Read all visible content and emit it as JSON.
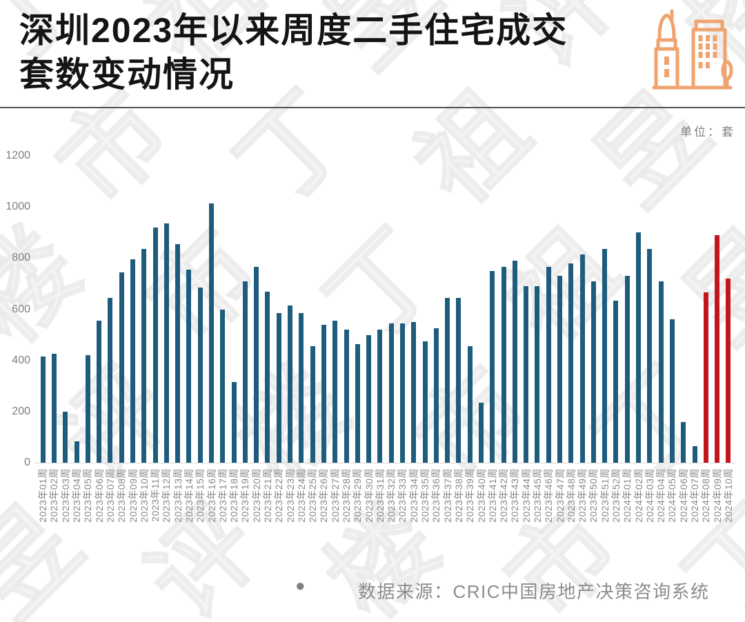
{
  "title": {
    "line1": "深圳2023年以来周度二手住宅成交",
    "line2": "套数变动情况"
  },
  "unit_label": "单位：套",
  "watermark_text": "丁祖昱评楼市",
  "footer": {
    "bullet": "●",
    "source": "数据来源：CRIC中国房地产决策咨询系统"
  },
  "icon": {
    "name": "buildings-icon",
    "color": "#F0A36E"
  },
  "colors": {
    "bar_blue": "#1D5C7C",
    "bar_red": "#C3161C",
    "title_text": "#141414",
    "axis_text": "#7c7c7c",
    "x_label_text": "#878787",
    "footer_text": "#8c8c8c",
    "divider": "#515151",
    "axis_line": "#d8d8d8",
    "icon_orange": "#F0A36E",
    "watermark": "#e9e9e9"
  },
  "chart_data": {
    "type": "bar",
    "title": "深圳2023年以来周度二手住宅成交套数变动情况",
    "unit": "套",
    "xlabel": "",
    "ylabel": "",
    "ylim": [
      0,
      1200
    ],
    "yticks": [
      0,
      200,
      400,
      600,
      800,
      1000,
      1200
    ],
    "grid": false,
    "legend": false,
    "bar_color": "#1D5C7C",
    "highlight_color": "#C3161C",
    "highlight_categories": [
      "2024年08周",
      "2024年09周",
      "2024年10周"
    ],
    "categories": [
      "2023年01周",
      "2023年02周",
      "2023年03周",
      "2023年04周",
      "2023年05周",
      "2023年06周",
      "2023年07周",
      "2023年08周",
      "2023年09周",
      "2023年10周",
      "2023年11周",
      "2023年12周",
      "2023年13周",
      "2023年14周",
      "2023年15周",
      "2023年16周",
      "2023年17周",
      "2023年18周",
      "2023年19周",
      "2023年20周",
      "2023年21周",
      "2023年22周",
      "2023年23周",
      "2023年24周",
      "2023年25周",
      "2023年26周",
      "2023年27周",
      "2023年28周",
      "2023年29周",
      "2023年30周",
      "2023年31周",
      "2023年32周",
      "2023年33周",
      "2023年34周",
      "2023年35周",
      "2023年36周",
      "2023年37周",
      "2023年38周",
      "2023年39周",
      "2023年40周",
      "2023年41周",
      "2023年42周",
      "2023年43周",
      "2023年44周",
      "2023年45周",
      "2023年46周",
      "2023年47周",
      "2023年48周",
      "2023年49周",
      "2023年50周",
      "2023年51周",
      "2023年52周",
      "2024年01周",
      "2024年02周",
      "2024年03周",
      "2024年04周",
      "2024年05周",
      "2024年06周",
      "2024年07周",
      "2024年08周",
      "2024年09周",
      "2024年10周"
    ],
    "values": [
      415,
      425,
      200,
      85,
      420,
      555,
      645,
      745,
      795,
      835,
      920,
      935,
      855,
      755,
      685,
      1015,
      600,
      315,
      710,
      765,
      670,
      585,
      615,
      585,
      455,
      540,
      555,
      520,
      465,
      500,
      520,
      545,
      545,
      550,
      475,
      525,
      645,
      645,
      455,
      235,
      750,
      765,
      790,
      690,
      690,
      765,
      730,
      780,
      815,
      710,
      835,
      635,
      730,
      900,
      835,
      710,
      560,
      160,
      65,
      665,
      890,
      720
    ]
  }
}
